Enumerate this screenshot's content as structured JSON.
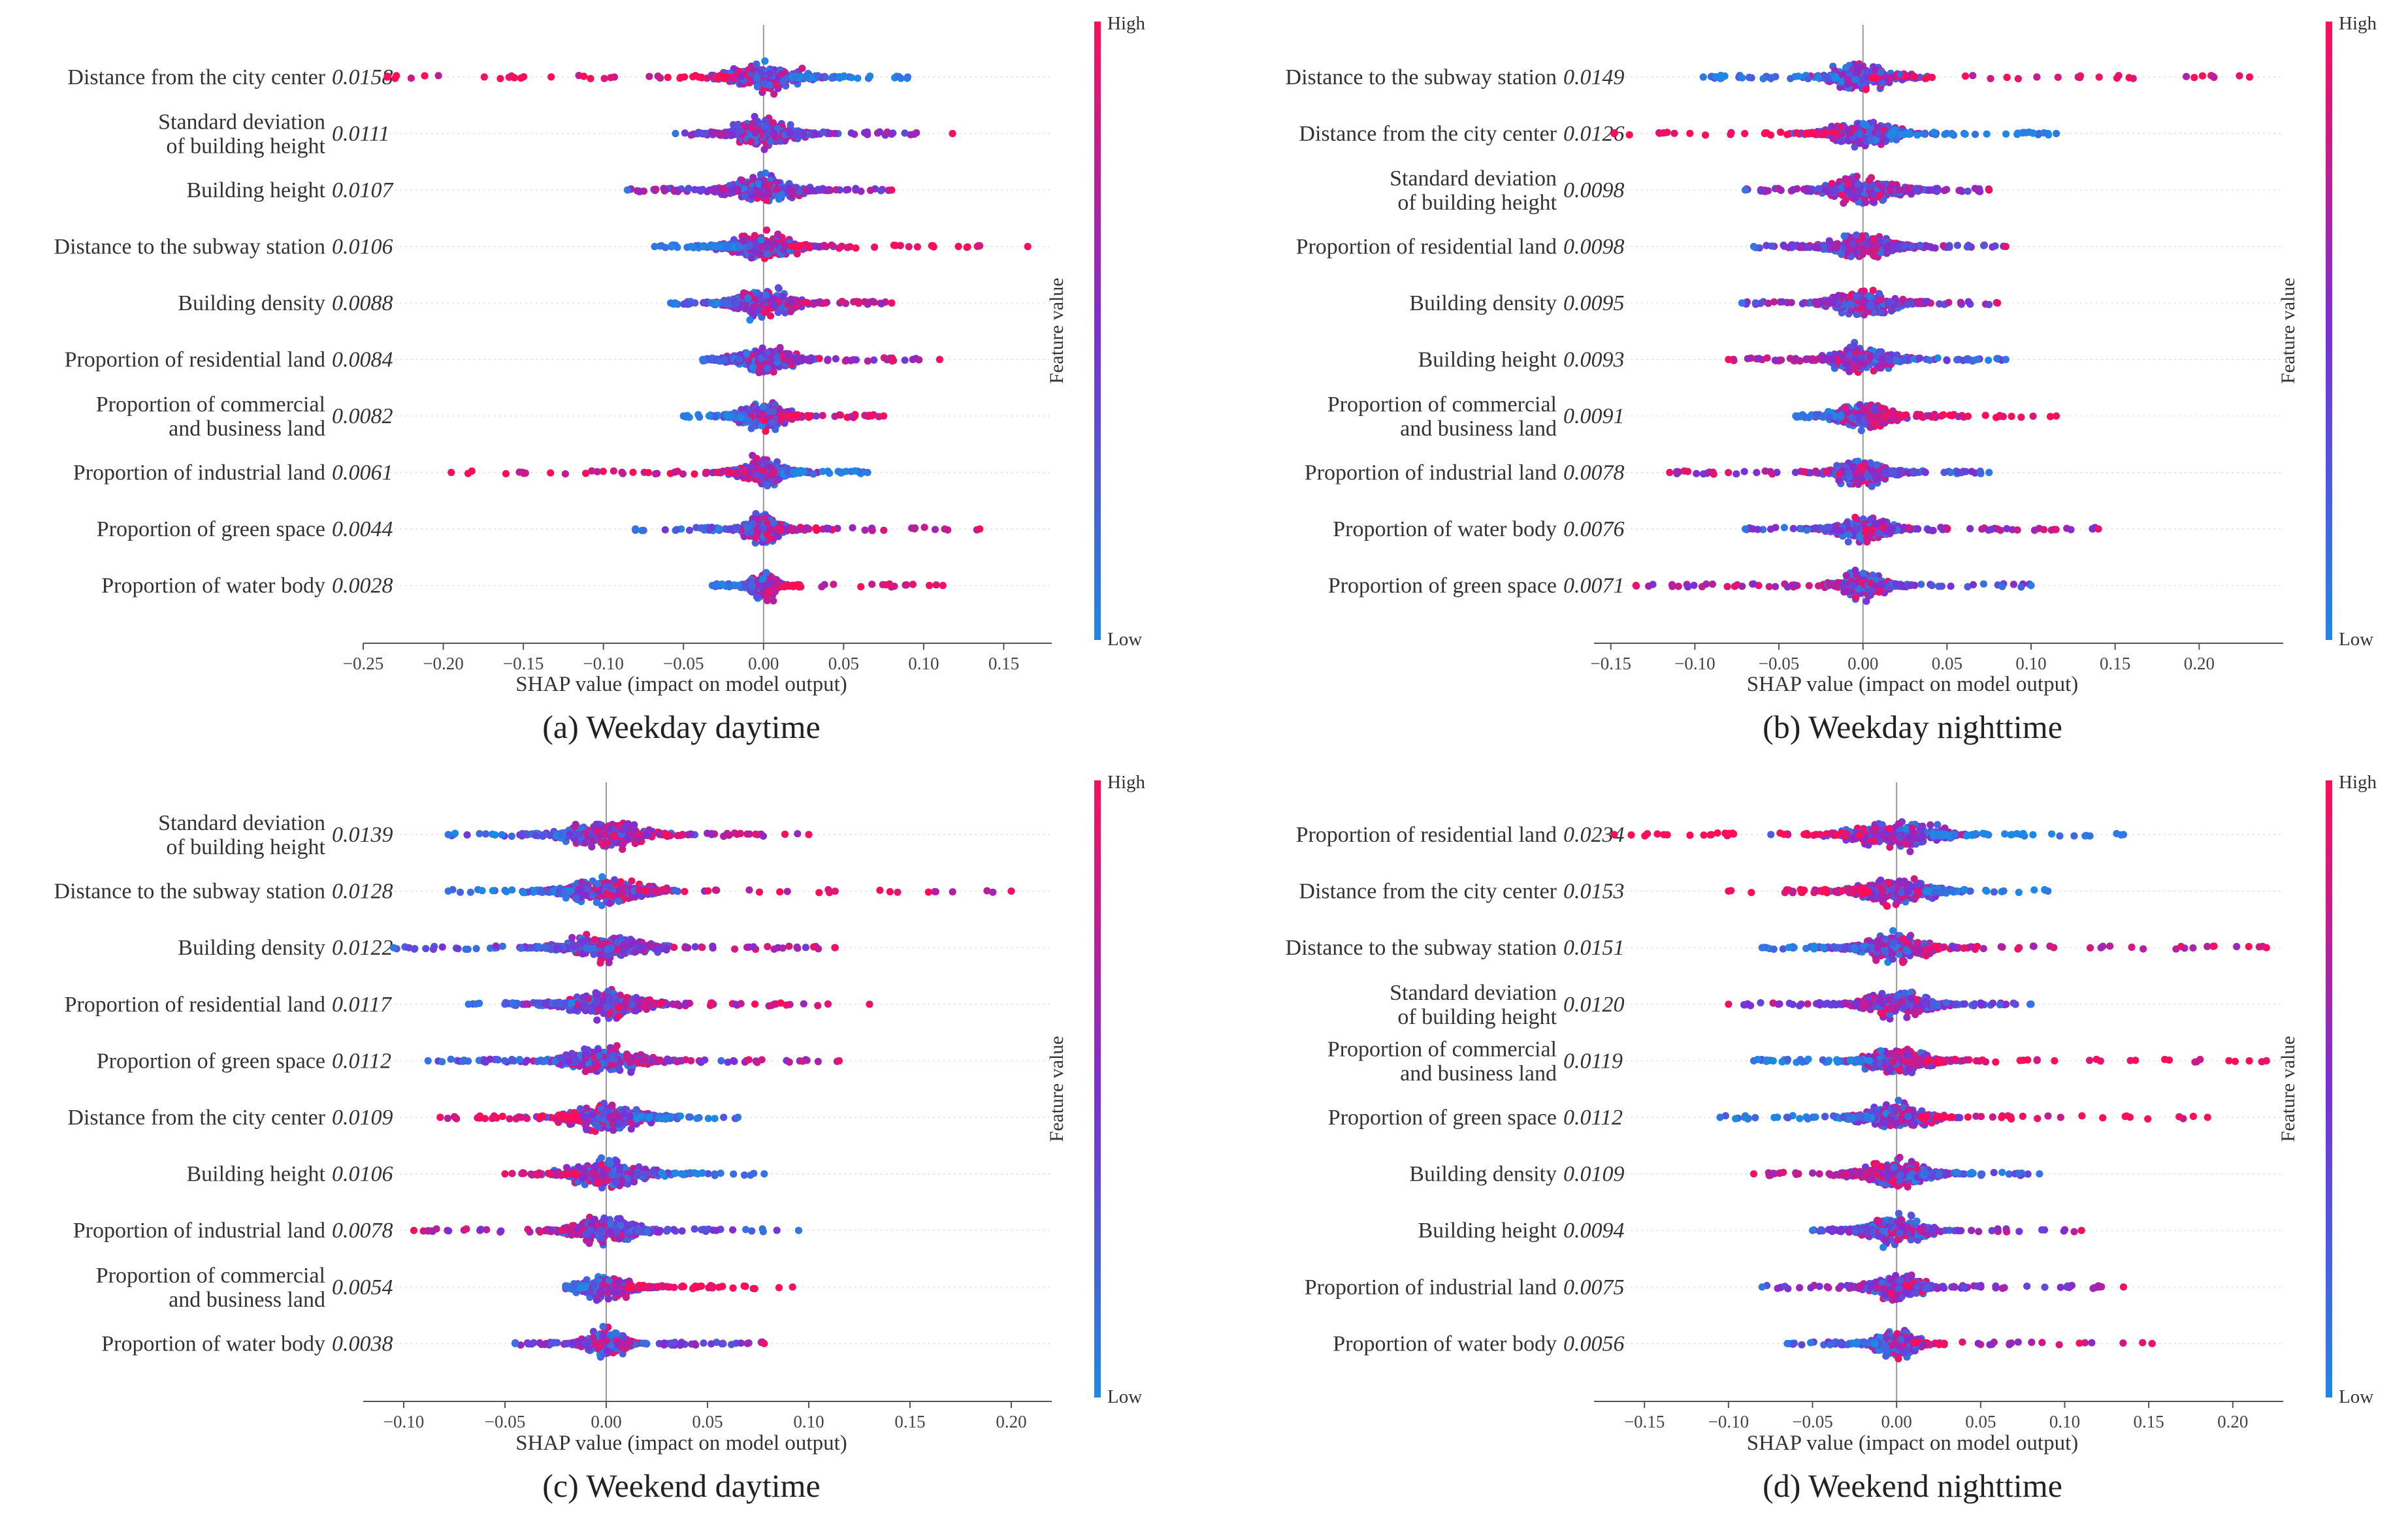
{
  "colors": {
    "low": "#1e88e5",
    "mid": "#7b2fd6",
    "high": "#ff0d57"
  },
  "chart_data": [
    {
      "type": "beeswarm",
      "caption": "(a) Weekday daytime",
      "xlabel": "SHAP value (impact on model output)",
      "xlim": [
        -0.25,
        0.18
      ],
      "xticks": [
        -0.25,
        -0.2,
        -0.15,
        -0.1,
        -0.05,
        0.0,
        0.05,
        0.1,
        0.15
      ],
      "xtick_labels": [
        "−0.25",
        "−0.20",
        "−0.15",
        "−0.10",
        "−0.05",
        "0.00",
        "0.05",
        "0.10",
        "0.15"
      ],
      "colorbar": {
        "title": "Feature value",
        "high": "High",
        "low": "Low"
      },
      "features": [
        {
          "name": "Distance from the city center",
          "importance": "0.0158",
          "range": [
            -0.235,
            0.09
          ],
          "skew": 0.55,
          "core": 0.018
        },
        {
          "name": "Standard deviation of building height",
          "lines": [
            "Standard deviation",
            "of building height"
          ],
          "importance": "0.0111",
          "range": [
            -0.055,
            0.118
          ],
          "skew": 0.0,
          "core": 0.016
        },
        {
          "name": "Building height",
          "importance": "0.0107",
          "range": [
            -0.085,
            0.08
          ],
          "skew": 0.0,
          "core": 0.016
        },
        {
          "name": "Distance to the subway station",
          "importance": "0.0106",
          "range": [
            -0.068,
            0.165
          ],
          "skew": -0.55,
          "core": 0.015
        },
        {
          "name": "Building density",
          "importance": "0.0088",
          "range": [
            -0.058,
            0.08
          ],
          "skew": -0.3,
          "core": 0.015
        },
        {
          "name": "Proportion of residential land",
          "importance": "0.0084",
          "range": [
            -0.038,
            0.11
          ],
          "skew": -0.2,
          "core": 0.014
        },
        {
          "name": "Proportion of commercial and business land",
          "lines": [
            "Proportion of commercial",
            "and business land"
          ],
          "importance": "0.0082",
          "range": [
            -0.05,
            0.075
          ],
          "skew": -0.5,
          "core": 0.012
        },
        {
          "name": "Proportion of industrial land",
          "importance": "0.0061",
          "range": [
            -0.195,
            0.065
          ],
          "skew": 0.5,
          "core": 0.012
        },
        {
          "name": "Proportion of green space",
          "importance": "0.0044",
          "range": [
            -0.08,
            0.135
          ],
          "skew": -0.3,
          "core": 0.009
        },
        {
          "name": "Proportion of water body",
          "importance": "0.0028",
          "range": [
            -0.032,
            0.112
          ],
          "skew": -0.4,
          "core": 0.007
        }
      ]
    },
    {
      "type": "beeswarm",
      "caption": "(b) Weekday nighttime",
      "xlabel": "SHAP value (impact on model output)",
      "xlim": [
        -0.16,
        0.25
      ],
      "xticks": [
        -0.15,
        -0.1,
        -0.05,
        0.0,
        0.05,
        0.1,
        0.15,
        0.2
      ],
      "xtick_labels": [
        "−0.15",
        "−0.10",
        "−0.05",
        "0.00",
        "0.05",
        "0.10",
        "0.15",
        "0.20"
      ],
      "colorbar": {
        "title": "Feature value",
        "high": "High",
        "low": "Low"
      },
      "features": [
        {
          "name": "Distance to the subway station",
          "importance": "0.0149",
          "range": [
            -0.095,
            0.23
          ],
          "skew": -0.5,
          "core": 0.016
        },
        {
          "name": "Distance from the city center",
          "importance": "0.0126",
          "range": [
            -0.148,
            0.115
          ],
          "skew": 0.55,
          "core": 0.016
        },
        {
          "name": "Standard deviation of building height",
          "lines": [
            "Standard deviation",
            "of building height"
          ],
          "importance": "0.0098",
          "range": [
            -0.07,
            0.075
          ],
          "skew": 0.0,
          "core": 0.015
        },
        {
          "name": "Proportion of residential land",
          "importance": "0.0098",
          "range": [
            -0.065,
            0.085
          ],
          "skew": 0.0,
          "core": 0.015
        },
        {
          "name": "Building density",
          "importance": "0.0095",
          "range": [
            -0.072,
            0.08
          ],
          "skew": 0.0,
          "core": 0.015
        },
        {
          "name": "Building height",
          "importance": "0.0093",
          "range": [
            -0.08,
            0.085
          ],
          "skew": 0.3,
          "core": 0.015
        },
        {
          "name": "Proportion of commercial and business land",
          "lines": [
            "Proportion of commercial",
            "and business land"
          ],
          "importance": "0.0091",
          "range": [
            -0.04,
            0.115
          ],
          "skew": -0.5,
          "core": 0.013
        },
        {
          "name": "Proportion of industrial land",
          "importance": "0.0078",
          "range": [
            -0.115,
            0.075
          ],
          "skew": 0.2,
          "core": 0.013
        },
        {
          "name": "Proportion of water body",
          "importance": "0.0076",
          "range": [
            -0.07,
            0.14
          ],
          "skew": -0.2,
          "core": 0.012
        },
        {
          "name": "Proportion of green space",
          "importance": "0.0071",
          "range": [
            -0.135,
            0.1
          ],
          "skew": 0.2,
          "core": 0.011
        }
      ]
    },
    {
      "type": "beeswarm",
      "caption": "(c) Weekend daytime",
      "xlabel": "SHAP value (impact on model output)",
      "xlim": [
        -0.12,
        0.22
      ],
      "xticks": [
        -0.1,
        -0.05,
        0.0,
        0.05,
        0.1,
        0.15,
        0.2
      ],
      "xtick_labels": [
        "−0.10",
        "−0.05",
        "0.00",
        "0.05",
        "0.10",
        "0.15",
        "0.20"
      ],
      "colorbar": {
        "title": "Feature value",
        "high": "High",
        "low": "Low"
      },
      "features": [
        {
          "name": "Standard deviation of building height",
          "lines": [
            "Standard deviation",
            "of building height"
          ],
          "importance": "0.0139",
          "range": [
            -0.078,
            0.1
          ],
          "skew": -0.3,
          "core": 0.017
        },
        {
          "name": "Distance to the subway station",
          "importance": "0.0128",
          "range": [
            -0.078,
            0.2
          ],
          "skew": -0.4,
          "core": 0.016
        },
        {
          "name": "Building density",
          "importance": "0.0122",
          "range": [
            -0.105,
            0.113
          ],
          "skew": -0.2,
          "core": 0.016
        },
        {
          "name": "Proportion of residential land",
          "importance": "0.0117",
          "range": [
            -0.068,
            0.13
          ],
          "skew": -0.3,
          "core": 0.016
        },
        {
          "name": "Proportion of green space",
          "importance": "0.0112",
          "range": [
            -0.088,
            0.115
          ],
          "skew": -0.2,
          "core": 0.015
        },
        {
          "name": "Distance from the city center",
          "importance": "0.0109",
          "range": [
            -0.082,
            0.065
          ],
          "skew": 0.5,
          "core": 0.015
        },
        {
          "name": "Building height",
          "importance": "0.0106",
          "range": [
            -0.05,
            0.078
          ],
          "skew": 0.4,
          "core": 0.015
        },
        {
          "name": "Proportion of industrial land",
          "importance": "0.0078",
          "range": [
            -0.095,
            0.095
          ],
          "skew": 0.2,
          "core": 0.013
        },
        {
          "name": "Proportion of commercial and business land",
          "lines": [
            "Proportion of commercial",
            "and business land"
          ],
          "importance": "0.0054",
          "range": [
            -0.02,
            0.092
          ],
          "skew": -0.5,
          "core": 0.01
        },
        {
          "name": "Proportion of water body",
          "importance": "0.0038",
          "range": [
            -0.045,
            0.078
          ],
          "skew": 0.0,
          "core": 0.008
        }
      ]
    },
    {
      "type": "beeswarm",
      "caption": "(d) Weekend nighttime",
      "xlabel": "SHAP value (impact on model output)",
      "xlim": [
        -0.18,
        0.23
      ],
      "xticks": [
        -0.15,
        -0.1,
        -0.05,
        0.0,
        0.05,
        0.1,
        0.15,
        0.2
      ],
      "xtick_labels": [
        "−0.15",
        "−0.10",
        "−0.05",
        "0.00",
        "0.05",
        "0.10",
        "0.15",
        "0.20"
      ],
      "colorbar": {
        "title": "Feature value",
        "high": "High",
        "low": "Low"
      },
      "features": [
        {
          "name": "Proportion of residential land",
          "importance": "0.0234",
          "range": [
            -0.168,
            0.135
          ],
          "skew": 0.6,
          "core": 0.022
        },
        {
          "name": "Distance from the city center",
          "importance": "0.0153",
          "range": [
            -0.1,
            0.09
          ],
          "skew": 0.55,
          "core": 0.017
        },
        {
          "name": "Distance to the subway station",
          "importance": "0.0151",
          "range": [
            -0.08,
            0.22
          ],
          "skew": -0.4,
          "core": 0.017
        },
        {
          "name": "Standard deviation of building height",
          "lines": [
            "Standard deviation",
            "of building height"
          ],
          "importance": "0.0120",
          "range": [
            -0.1,
            0.08
          ],
          "skew": 0.1,
          "core": 0.016
        },
        {
          "name": "Proportion of commercial and business land",
          "lines": [
            "Proportion of commercial",
            "and business land"
          ],
          "importance": "0.0119",
          "range": [
            -0.085,
            0.22
          ],
          "skew": -0.5,
          "core": 0.015
        },
        {
          "name": "Proportion of green space",
          "importance": "0.0112",
          "range": [
            -0.105,
            0.185
          ],
          "skew": -0.5,
          "core": 0.015
        },
        {
          "name": "Building density",
          "importance": "0.0109",
          "range": [
            -0.085,
            0.085
          ],
          "skew": 0.3,
          "core": 0.015
        },
        {
          "name": "Building height",
          "importance": "0.0094",
          "range": [
            -0.05,
            0.11
          ],
          "skew": -0.1,
          "core": 0.014
        },
        {
          "name": "Proportion of industrial land",
          "importance": "0.0075",
          "range": [
            -0.08,
            0.135
          ],
          "skew": 0.0,
          "core": 0.012
        },
        {
          "name": "Proportion of water body",
          "importance": "0.0056",
          "range": [
            -0.065,
            0.152
          ],
          "skew": -0.3,
          "core": 0.01
        }
      ]
    }
  ]
}
